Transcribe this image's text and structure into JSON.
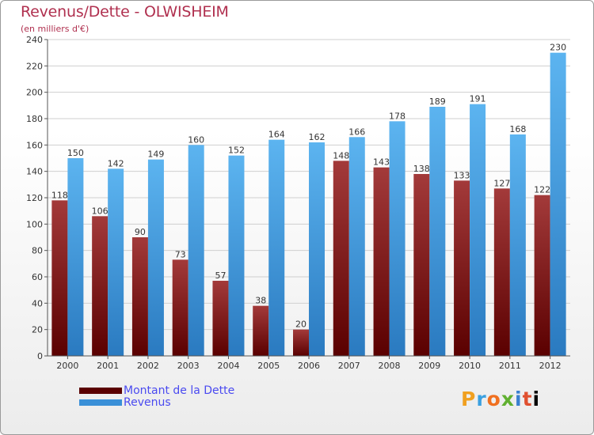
{
  "header": {
    "title": "Revenus/Dette - OLWISHEIM",
    "subtitle": "(en milliers d'€)"
  },
  "brand": {
    "logo_text": "Proxiti"
  },
  "colors": {
    "dette": "#7a1010",
    "revenus": "#3a90d8",
    "axis_text": "#333333"
  },
  "chart_data": {
    "type": "bar",
    "categories": [
      "2000",
      "2001",
      "2002",
      "2003",
      "2004",
      "2005",
      "2006",
      "2007",
      "2008",
      "2009",
      "2010",
      "2011",
      "2012"
    ],
    "series": [
      {
        "name": "Montant de la Dette",
        "values": [
          118,
          106,
          90,
          73,
          57,
          38,
          20,
          148,
          143,
          138,
          133,
          127,
          122
        ]
      },
      {
        "name": "Revenus",
        "values": [
          150,
          142,
          149,
          160,
          152,
          164,
          162,
          166,
          178,
          189,
          191,
          168,
          230
        ]
      }
    ],
    "yticks": [
      "0",
      "20",
      "40",
      "60",
      "80",
      "100",
      "120",
      "140",
      "160",
      "180",
      "200",
      "220",
      "240"
    ],
    "ylim": [
      0,
      240
    ],
    "grid": true,
    "legend_position": "bottom-left"
  }
}
